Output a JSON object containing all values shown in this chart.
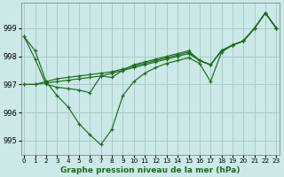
{
  "background_color": "#cce8e8",
  "grid_color": "#aacccc",
  "line_color": "#1a6e1a",
  "title": "Graphe pression niveau de la mer (hPa)",
  "ylim": [
    994.5,
    999.9
  ],
  "xlim": [
    -0.3,
    23.3
  ],
  "yticks": [
    995,
    996,
    997,
    998,
    999
  ],
  "xticks": [
    0,
    1,
    2,
    3,
    4,
    5,
    6,
    7,
    8,
    9,
    10,
    11,
    12,
    13,
    14,
    15,
    16,
    17,
    18,
    19,
    20,
    21,
    22,
    23
  ],
  "series": [
    [
      998.7,
      998.2,
      997.1,
      996.6,
      996.2,
      995.6,
      995.2,
      994.85,
      995.4,
      996.6,
      997.1,
      997.4,
      997.6,
      997.75,
      997.85,
      997.95,
      997.75,
      997.1,
      998.15,
      998.4,
      998.55,
      999.0,
      999.55,
      999.0
    ],
    [
      997.0,
      997.0,
      997.05,
      997.1,
      997.15,
      997.2,
      997.25,
      997.3,
      997.4,
      997.5,
      997.6,
      997.7,
      997.8,
      997.9,
      998.0,
      998.1,
      997.85,
      997.7,
      998.2,
      998.4,
      998.55,
      999.0,
      999.55,
      999.0
    ],
    [
      997.0,
      997.0,
      997.1,
      997.2,
      997.25,
      997.3,
      997.35,
      997.4,
      997.45,
      997.55,
      997.65,
      997.75,
      997.85,
      997.95,
      998.05,
      998.15,
      997.85,
      997.7,
      998.2,
      998.4,
      998.55,
      999.0,
      999.55,
      999.0
    ],
    [
      998.7,
      997.9,
      997.0,
      996.9,
      996.85,
      996.8,
      996.7,
      997.3,
      997.25,
      997.5,
      997.7,
      997.8,
      997.9,
      998.0,
      998.1,
      998.2,
      997.85,
      997.7,
      998.2,
      998.4,
      998.55,
      999.0,
      999.55,
      999.0
    ]
  ]
}
